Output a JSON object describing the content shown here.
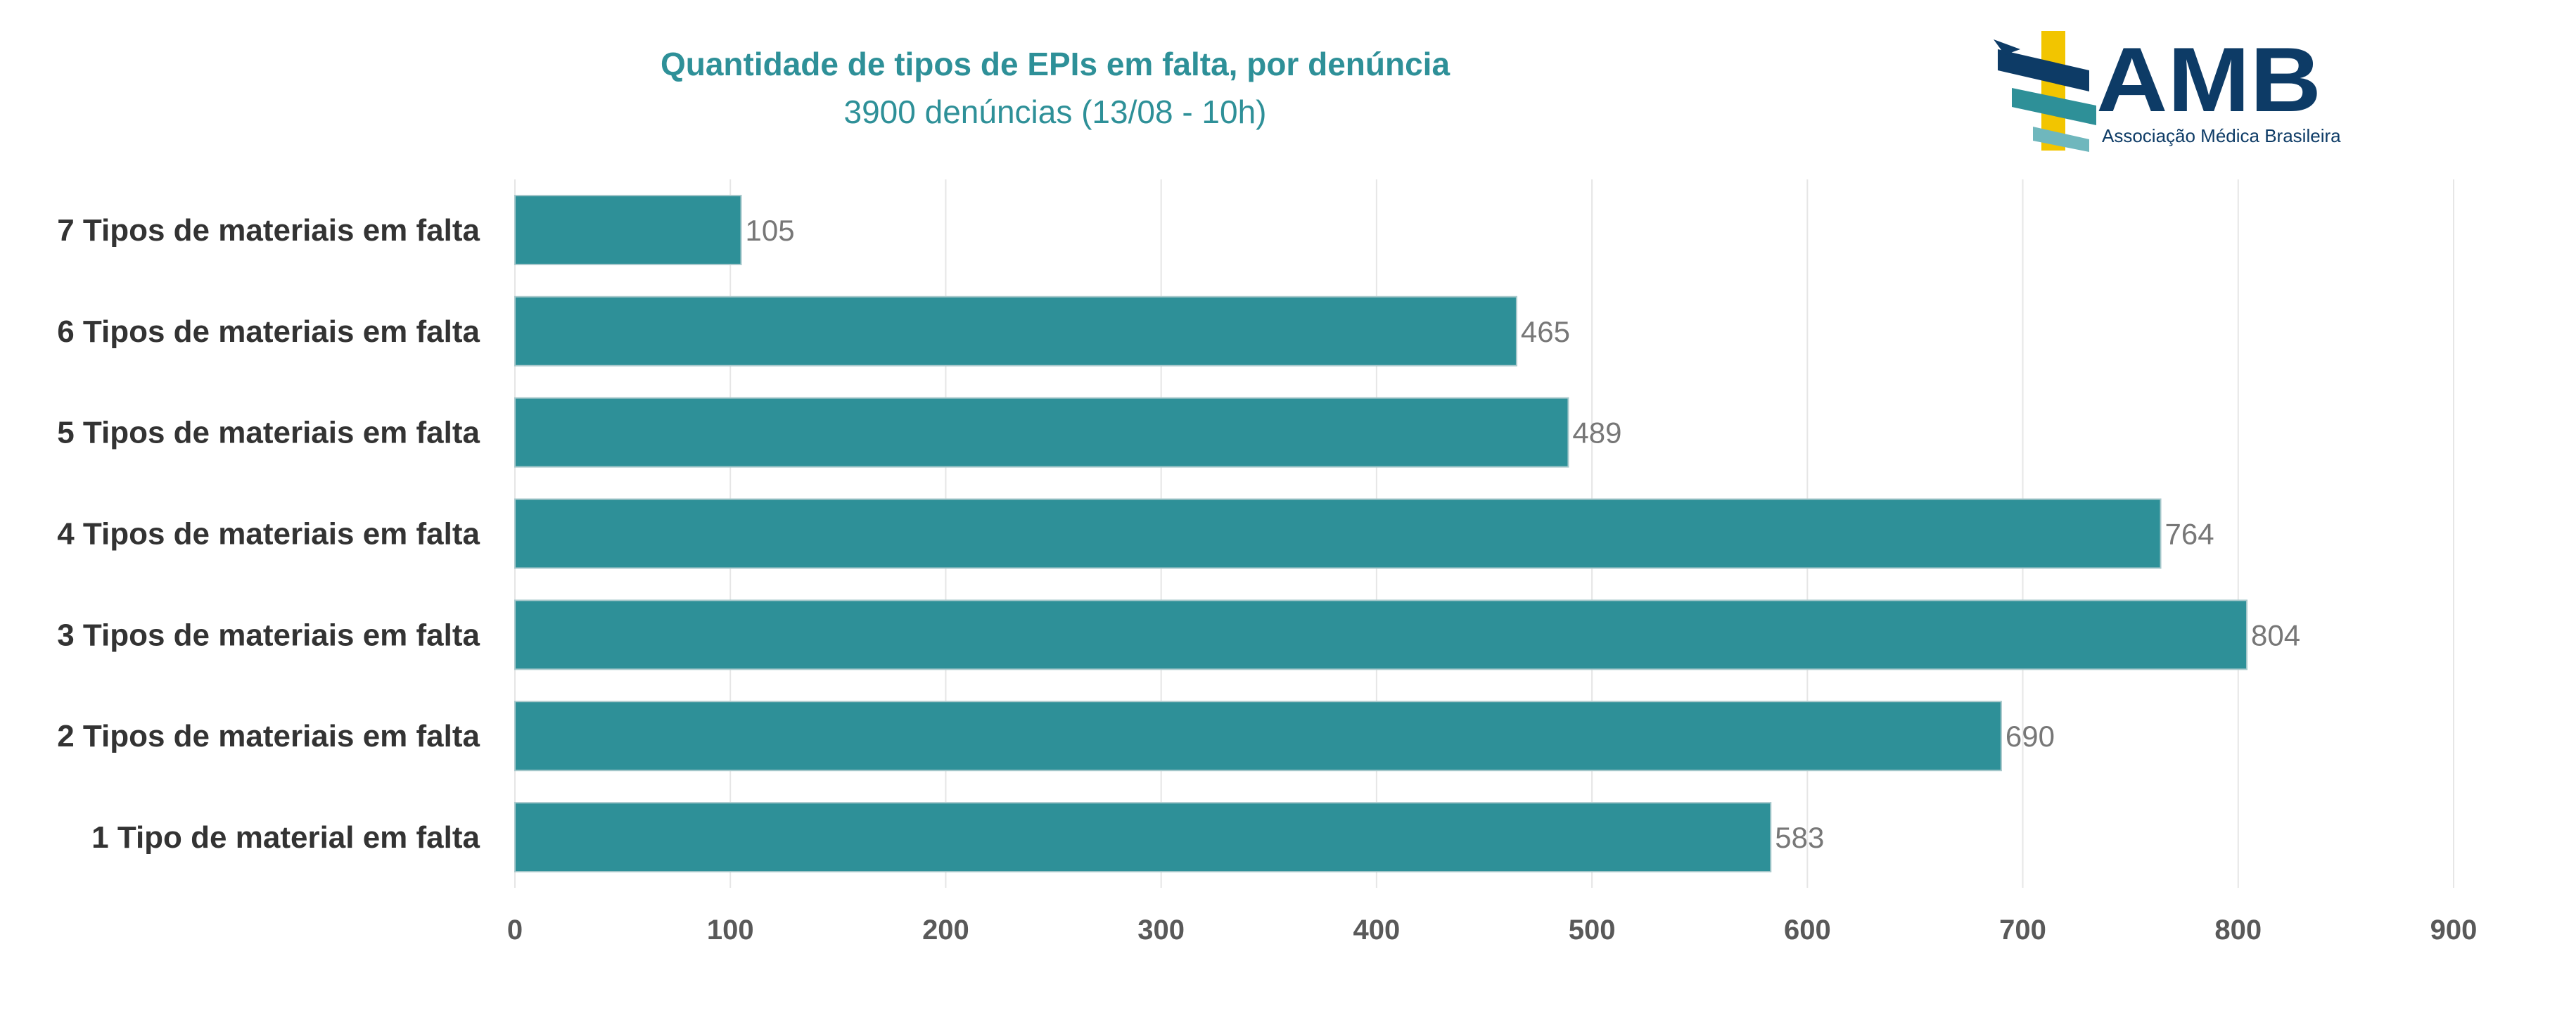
{
  "chart_data": {
    "type": "bar",
    "orientation": "horizontal",
    "title": "Quantidade de tipos de EPIs em falta, por denúncia",
    "subtitle": "3900 denúncias (13/08 - 10h)",
    "categories": [
      "7 Tipos de materiais em falta",
      "6 Tipos de materiais em falta",
      "5 Tipos de materiais em falta",
      "4 Tipos de materiais em falta",
      "3 Tipos de materiais em falta",
      "2 Tipos de materiais em falta",
      "1 Tipo de material em falta"
    ],
    "values": [
      105,
      465,
      489,
      764,
      804,
      690,
      583
    ],
    "data_labels": [
      "105",
      "465",
      "489",
      "764",
      "804",
      "690",
      "583"
    ],
    "xlim": [
      0,
      900
    ],
    "xticks": [
      "0",
      "100",
      "200",
      "300",
      "400",
      "500",
      "600",
      "700",
      "800",
      "900"
    ],
    "grid": true,
    "legend": "none",
    "bar_color": "#2e9098",
    "grid_color": "#e6e6e6"
  },
  "logo": {
    "text": "AMB",
    "tagline": "Associação Médica Brasileira",
    "navy": "#0d3b66",
    "yellow": "#f2c500",
    "teal": "#2e9098"
  }
}
